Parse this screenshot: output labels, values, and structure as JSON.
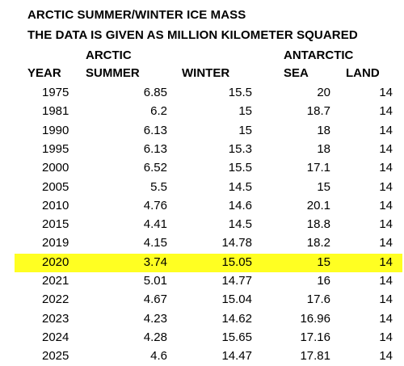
{
  "title_line1": "ARCTIC SUMMER/WINTER ICE MASS",
  "title_line2": "THE DATA IS GIVEN AS MILLION KILOMETER SQUARED",
  "headers": {
    "arctic_group": "ARCTIC",
    "antarctic_group": "ANTARCTIC",
    "year": "YEAR",
    "summer": "SUMMER",
    "winter": "WINTER",
    "sea": "SEA",
    "land": "LAND"
  },
  "highlight_color": "#ffff22",
  "rows": [
    {
      "year": "1975",
      "summer": "6.85",
      "winter": "15.5",
      "sea": "20",
      "land": "14",
      "highlight": false
    },
    {
      "year": "1981",
      "summer": "6.2",
      "winter": "15",
      "sea": "18.7",
      "land": "14",
      "highlight": false
    },
    {
      "year": "1990",
      "summer": "6.13",
      "winter": "15",
      "sea": "18",
      "land": "14",
      "highlight": false
    },
    {
      "year": "1995",
      "summer": "6.13",
      "winter": "15.3",
      "sea": "18",
      "land": "14",
      "highlight": false
    },
    {
      "year": "2000",
      "summer": "6.52",
      "winter": "15.5",
      "sea": "17.1",
      "land": "14",
      "highlight": false
    },
    {
      "year": "2005",
      "summer": "5.5",
      "winter": "14.5",
      "sea": "15",
      "land": "14",
      "highlight": false
    },
    {
      "year": "2010",
      "summer": "4.76",
      "winter": "14.6",
      "sea": "20.1",
      "land": "14",
      "highlight": false
    },
    {
      "year": "2015",
      "summer": "4.41",
      "winter": "14.5",
      "sea": "18.8",
      "land": "14",
      "highlight": false
    },
    {
      "year": "2019",
      "summer": "4.15",
      "winter": "14.78",
      "sea": "18.2",
      "land": "14",
      "highlight": false
    },
    {
      "year": "2020",
      "summer": "3.74",
      "winter": "15.05",
      "sea": "15",
      "land": "14",
      "highlight": true
    },
    {
      "year": "2021",
      "summer": "5.01",
      "winter": "14.77",
      "sea": "16",
      "land": "14",
      "highlight": false
    },
    {
      "year": "2022",
      "summer": "4.67",
      "winter": "15.04",
      "sea": "17.6",
      "land": "14",
      "highlight": false
    },
    {
      "year": "2023",
      "summer": "4.23",
      "winter": "14.62",
      "sea": "16.96",
      "land": "14",
      "highlight": false
    },
    {
      "year": "2024",
      "summer": "4.28",
      "winter": "15.65",
      "sea": "17.16",
      "land": "14",
      "highlight": false
    },
    {
      "year": "2025",
      "summer": "4.6",
      "winter": "14.47",
      "sea": "17.81",
      "land": "14",
      "highlight": false
    }
  ]
}
